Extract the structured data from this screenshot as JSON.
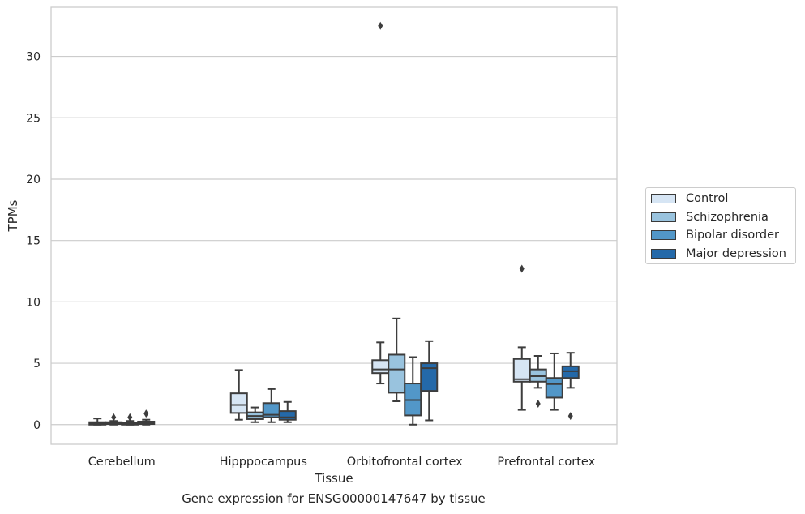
{
  "chart_data": {
    "type": "box",
    "caption": "Gene expression for ENSG00000147647 by tissue",
    "xlabel": "Tissue",
    "ylabel": "TPMs",
    "ylim": [
      -1.6,
      34
    ],
    "yticks": [
      0,
      5,
      10,
      15,
      20,
      25,
      30
    ],
    "grid": true,
    "legend_position": "right",
    "categories": [
      "Cerebellum",
      "Hipppocampus",
      "Orbitofrontal cortex",
      "Prefrontal cortex"
    ],
    "series": [
      {
        "name": "Control",
        "color": "#d6e5f4",
        "boxes": [
          {
            "whisker_low": 0.0,
            "q1": 0.0,
            "median": 0.1,
            "q3": 0.2,
            "whisker_high": 0.5,
            "outliers": []
          },
          {
            "whisker_low": 0.4,
            "q1": 0.95,
            "median": 1.6,
            "q3": 2.55,
            "whisker_high": 4.45,
            "outliers": []
          },
          {
            "whisker_low": 3.35,
            "q1": 4.2,
            "median": 4.5,
            "q3": 5.25,
            "whisker_high": 6.7,
            "outliers": [
              32.5
            ]
          },
          {
            "whisker_low": 1.2,
            "q1": 3.5,
            "median": 3.7,
            "q3": 5.35,
            "whisker_high": 6.3,
            "outliers": [
              12.7
            ]
          }
        ]
      },
      {
        "name": "Schizophrenia",
        "color": "#99c3de",
        "boxes": [
          {
            "whisker_low": 0.0,
            "q1": 0.05,
            "median": 0.1,
            "q3": 0.2,
            "whisker_high": 0.3,
            "outliers": [
              0.6
            ]
          },
          {
            "whisker_low": 0.2,
            "q1": 0.45,
            "median": 0.7,
            "q3": 1.0,
            "whisker_high": 1.4,
            "outliers": []
          },
          {
            "whisker_low": 1.9,
            "q1": 2.6,
            "median": 4.5,
            "q3": 5.7,
            "whisker_high": 8.65,
            "outliers": []
          },
          {
            "whisker_low": 3.0,
            "q1": 3.5,
            "median": 3.95,
            "q3": 4.5,
            "whisker_high": 5.6,
            "outliers": [
              1.7
            ]
          }
        ]
      },
      {
        "name": "Bipolar disorder",
        "color": "#5297c8",
        "boxes": [
          {
            "whisker_low": 0.0,
            "q1": 0.0,
            "median": 0.05,
            "q3": 0.15,
            "whisker_high": 0.3,
            "outliers": [
              0.6
            ]
          },
          {
            "whisker_low": 0.2,
            "q1": 0.6,
            "median": 0.8,
            "q3": 1.75,
            "whisker_high": 2.9,
            "outliers": []
          },
          {
            "whisker_low": 0.0,
            "q1": 0.75,
            "median": 2.0,
            "q3": 3.35,
            "whisker_high": 5.5,
            "outliers": []
          },
          {
            "whisker_low": 1.2,
            "q1": 2.2,
            "median": 3.3,
            "q3": 3.8,
            "whisker_high": 5.8,
            "outliers": []
          }
        ]
      },
      {
        "name": "Major depression",
        "color": "#2469a9",
        "boxes": [
          {
            "whisker_low": 0.0,
            "q1": 0.05,
            "median": 0.15,
            "q3": 0.25,
            "whisker_high": 0.4,
            "outliers": [
              0.9
            ]
          },
          {
            "whisker_low": 0.2,
            "q1": 0.4,
            "median": 0.6,
            "q3": 1.1,
            "whisker_high": 1.85,
            "outliers": []
          },
          {
            "whisker_low": 0.35,
            "q1": 2.75,
            "median": 4.6,
            "q3": 5.0,
            "whisker_high": 6.8,
            "outliers": []
          },
          {
            "whisker_low": 3.0,
            "q1": 3.8,
            "median": 4.35,
            "q3": 4.75,
            "whisker_high": 5.85,
            "outliers": [
              0.7
            ]
          }
        ]
      }
    ]
  }
}
